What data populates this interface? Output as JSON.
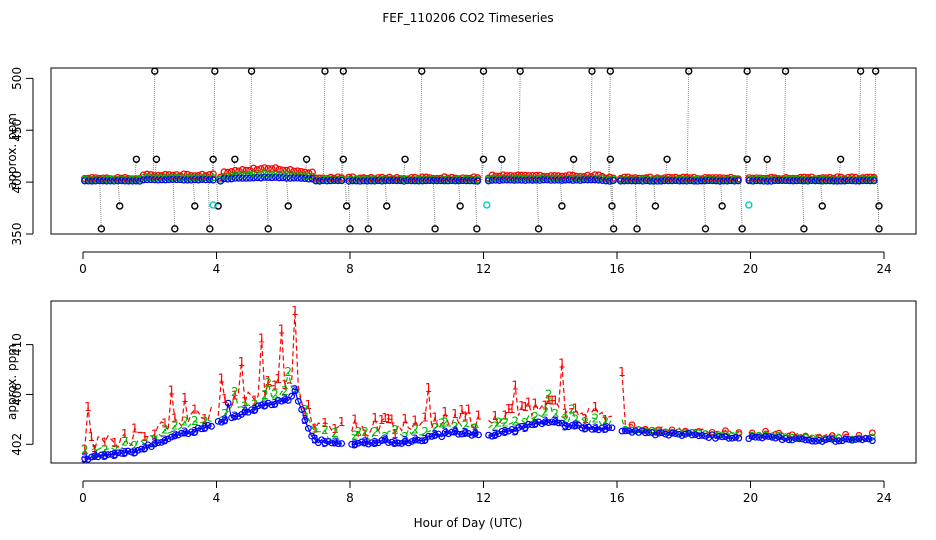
{
  "title": "FEF_110206  CO2 Timeseries",
  "xlabel": "Hour of Day (UTC)",
  "chart_data": [
    {
      "type": "scatter",
      "panel": "top",
      "ylabel": "approx. ppm",
      "xlim": [
        0,
        24
      ],
      "ylim": [
        350,
        510
      ],
      "x_ticks": [
        0,
        4,
        8,
        12,
        16,
        20,
        24
      ],
      "y_ticks": [
        350,
        400,
        450,
        500
      ],
      "series": [
        {
          "name": "red",
          "color": "#ff0000",
          "marker": "circle"
        },
        {
          "name": "green",
          "color": "#00bb00",
          "marker": "circle"
        },
        {
          "name": "blue",
          "color": "#0000ff",
          "marker": "circle"
        },
        {
          "name": "black",
          "color": "#000000",
          "marker": "circle"
        },
        {
          "name": "cyan",
          "color": "#00cccc",
          "marker": "circle"
        }
      ],
      "spike_times_high": [
        2.15,
        3.95,
        5.05,
        7.25,
        7.8,
        10.15,
        12.0,
        13.1,
        15.25,
        15.8,
        18.15,
        19.9,
        21.05,
        23.3,
        23.75
      ],
      "spike_times_low": [
        0.55,
        2.75,
        3.8,
        5.55,
        8.0,
        8.55,
        10.55,
        11.8,
        13.65,
        15.9,
        16.6,
        18.65,
        19.75,
        21.6,
        23.85
      ],
      "spike_times_mid": [
        1.6,
        2.2,
        3.9,
        4.55,
        6.7,
        7.8,
        9.65,
        12.0,
        12.55,
        14.7,
        15.8,
        17.5,
        19.9,
        20.5,
        22.7
      ],
      "spike_times_377": [
        1.1,
        3.35,
        4.05,
        6.15,
        7.9,
        9.1,
        11.3,
        14.35,
        15.85,
        17.15,
        19.15,
        22.15,
        23.85
      ],
      "cyan_points": [
        [
          3.9,
          378
        ],
        [
          12.1,
          378
        ],
        [
          19.95,
          378
        ]
      ],
      "baseline": 401
    },
    {
      "type": "line",
      "panel": "bottom",
      "ylabel": "approx. ppm",
      "xlim": [
        0,
        24
      ],
      "ylim": [
        400.5,
        413.5
      ],
      "x_ticks": [
        0,
        4,
        8,
        12,
        16,
        20,
        24
      ],
      "y_ticks": [
        402,
        406,
        410
      ],
      "series": [
        {
          "name": "1",
          "color": "#ff0000",
          "label_char": "1"
        },
        {
          "name": "2",
          "color": "#00bb00",
          "label_char": "2"
        },
        {
          "name": "3",
          "color": "#0000ff",
          "label_char": "3"
        }
      ],
      "profile_knots": [
        [
          0.0,
          400.9
        ],
        [
          0.5,
          401.0
        ],
        [
          1.0,
          401.2
        ],
        [
          1.5,
          401.4
        ],
        [
          2.0,
          401.9
        ],
        [
          2.5,
          402.4
        ],
        [
          3.0,
          402.9
        ],
        [
          3.5,
          403.2
        ],
        [
          4.0,
          403.7
        ],
        [
          4.5,
          404.2
        ],
        [
          5.0,
          404.7
        ],
        [
          5.5,
          405.2
        ],
        [
          6.0,
          405.5
        ],
        [
          6.4,
          405.9
        ],
        [
          6.8,
          402.9
        ],
        [
          7.0,
          402.3
        ],
        [
          7.5,
          402.1
        ],
        [
          8.0,
          402.1
        ],
        [
          8.5,
          402.1
        ],
        [
          9.0,
          402.3
        ],
        [
          9.5,
          402.2
        ],
        [
          10.0,
          402.3
        ],
        [
          10.5,
          402.6
        ],
        [
          11.0,
          402.9
        ],
        [
          11.5,
          403.0
        ],
        [
          12.0,
          402.5
        ],
        [
          12.5,
          402.9
        ],
        [
          13.0,
          403.2
        ],
        [
          13.5,
          403.6
        ],
        [
          14.0,
          403.9
        ],
        [
          14.5,
          403.4
        ],
        [
          15.0,
          403.4
        ],
        [
          15.5,
          403.2
        ],
        [
          16.0,
          403.2
        ],
        [
          16.5,
          403.0
        ],
        [
          17.0,
          402.9
        ],
        [
          18.0,
          402.8
        ],
        [
          19.0,
          402.6
        ],
        [
          19.7,
          402.6
        ],
        [
          20.1,
          402.5
        ],
        [
          21.0,
          402.5
        ],
        [
          22.0,
          402.3
        ],
        [
          23.0,
          402.3
        ],
        [
          23.7,
          402.4
        ]
      ],
      "red_spikes": [
        [
          0.15,
          405.0
        ],
        [
          2.7,
          406.3
        ],
        [
          3.1,
          405.7
        ],
        [
          4.2,
          407.3
        ],
        [
          4.75,
          408.6
        ],
        [
          5.3,
          410.5
        ],
        [
          5.9,
          411.2
        ],
        [
          6.35,
          412.7
        ],
        [
          10.3,
          406.5
        ],
        [
          12.9,
          406.7
        ],
        [
          14.3,
          408.5
        ],
        [
          16.1,
          407.8
        ]
      ],
      "green_spikes": [
        [
          4.6,
          406.2
        ],
        [
          5.5,
          406.9
        ],
        [
          6.1,
          407.8
        ],
        [
          13.9,
          406.0
        ],
        [
          14.6,
          404.8
        ]
      ],
      "blue_spikes": [
        [
          4.4,
          405.3
        ],
        [
          6.3,
          406.3
        ]
      ]
    }
  ]
}
